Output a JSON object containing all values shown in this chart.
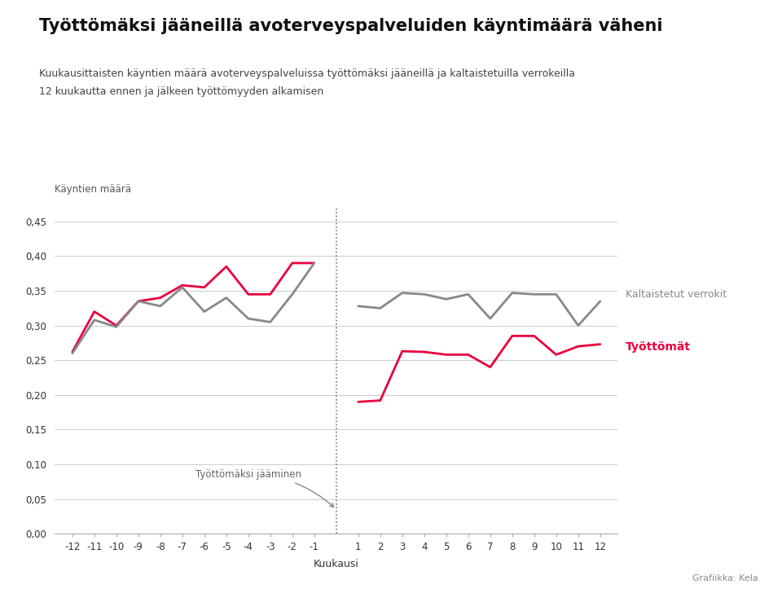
{
  "title": "Työttömäksi jääneillä avoterveyspalveluiden käyntimäärä väheni",
  "subtitle_line1": "Kuukausittaisten käyntien määrä avoterveyspalveluissa työttömäksi jääneillä ja kaltaistetuilla verrokeilla",
  "subtitle_line2": "12 kuukautta ennen ja jälkeen työttömyyden alkamisen",
  "ylabel": "Käyntien määrä",
  "xlabel": "Kuukausi",
  "credit": "Grafiikka: Kela",
  "months": [
    -12,
    -11,
    -10,
    -9,
    -8,
    -7,
    -6,
    -5,
    -4,
    -3,
    -2,
    -1,
    1,
    2,
    3,
    4,
    5,
    6,
    7,
    8,
    9,
    10,
    11,
    12
  ],
  "unemployed": [
    0.262,
    0.32,
    0.3,
    0.335,
    0.34,
    0.358,
    0.355,
    0.385,
    0.345,
    0.345,
    0.39,
    0.39,
    0.19,
    0.192,
    0.263,
    0.262,
    0.258,
    0.258,
    0.24,
    0.285,
    0.285,
    0.258,
    0.27,
    0.273
  ],
  "controls": [
    0.26,
    0.308,
    0.298,
    0.335,
    0.328,
    0.355,
    0.32,
    0.34,
    0.31,
    0.305,
    0.345,
    0.39,
    0.328,
    0.325,
    0.347,
    0.345,
    0.338,
    0.345,
    0.31,
    0.347,
    0.345,
    0.345,
    0.3,
    0.335
  ],
  "unemployed_color": "#e8003d",
  "controls_color": "#888888",
  "annotation_text": "Työttömäksi jääminen",
  "ylim": [
    0.0,
    0.47
  ],
  "yticks": [
    0.0,
    0.05,
    0.1,
    0.15,
    0.2,
    0.25,
    0.3,
    0.35,
    0.4,
    0.45
  ],
  "ytick_labels": [
    "0,00",
    "0,05",
    "0,10",
    "0,15",
    "0,20",
    "0,25",
    "0,30",
    "0,35",
    "0,40",
    "0,45"
  ],
  "background_color": "#ffffff",
  "line_width": 2.0,
  "label_controls": "Kaltaistetut verrokit",
  "label_unemployed": "Työttömät"
}
